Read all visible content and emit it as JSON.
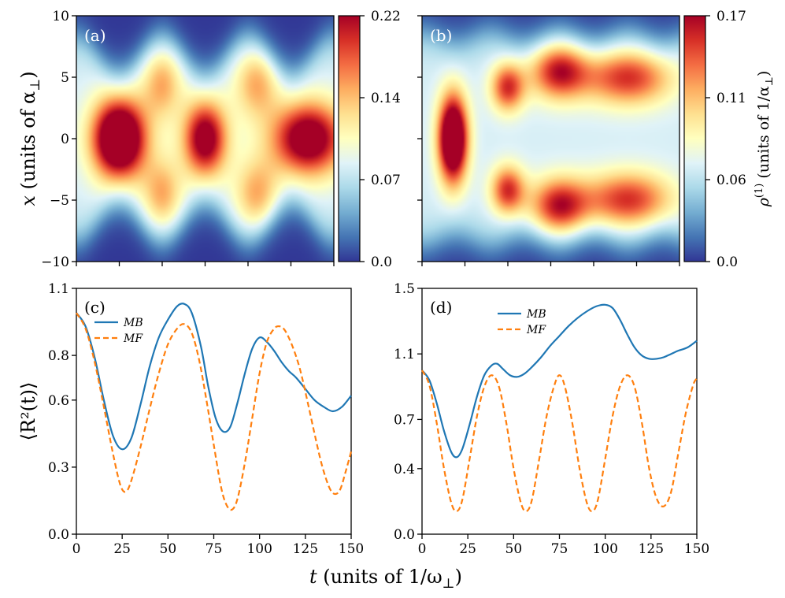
{
  "figure": {
    "shared_xlabel": "t (units of 1/ω⊥)",
    "shared_xlabel_italic": "t",
    "shared_xlabel_rest": " (units of 1/ω",
    "shared_xlabel_sub": "⊥",
    "shared_xlabel_close": ")"
  },
  "chart_data": [
    {
      "type": "heatmap",
      "panel": "(a)",
      "ylabel": "x (units of α⊥)",
      "ylabel_italic": "x",
      "ylabel_rest": " (units of α",
      "ylabel_sub": "⊥",
      "ylabel_close": ")",
      "xlim": [
        0,
        150
      ],
      "ylim": [
        -10,
        10
      ],
      "yticks": [
        10,
        5,
        0,
        -5,
        -10
      ],
      "ytick_labels": [
        "10",
        "5",
        "0",
        "−5",
        "−10"
      ],
      "colorbar": {
        "ticks": [
          "0.22",
          "0.14",
          "0.07",
          "0.0"
        ],
        "max": 0.22,
        "label": ""
      },
      "blobs": [
        {
          "t": 25,
          "x": 0,
          "amp": 0.22,
          "st": 11,
          "sx": 2.3
        },
        {
          "t": 75,
          "x": 0,
          "amp": 0.16,
          "st": 9,
          "sx": 2.2
        },
        {
          "t": 135,
          "x": 0,
          "amp": 0.17,
          "st": 15,
          "sx": 2.1
        },
        {
          "t": 50,
          "x": 4.5,
          "amp": 0.07,
          "st": 8,
          "sx": 2.0
        },
        {
          "t": 50,
          "x": -4.5,
          "amp": 0.07,
          "st": 8,
          "sx": 2.0
        },
        {
          "t": 105,
          "x": 4.5,
          "amp": 0.07,
          "st": 9,
          "sx": 2.0
        },
        {
          "t": 105,
          "x": -4.5,
          "amp": 0.07,
          "st": 9,
          "sx": 2.0
        }
      ],
      "background": 0.085,
      "halfwidth_mean": 6.8,
      "halfwidth_amp": 1.4,
      "halfwidth_period": 50
    },
    {
      "type": "heatmap",
      "panel": "(b)",
      "ylabel": "",
      "xlim": [
        0,
        150
      ],
      "ylim": [
        -10,
        10
      ],
      "colorbar": {
        "ticks": [
          "0.17",
          "0.11",
          "0.06",
          "0.0"
        ],
        "max": 0.17,
        "label": "ρ(1) (units of 1/α⊥)"
      },
      "colorbar_label_main": "ρ",
      "colorbar_label_sup": "(1)",
      "colorbar_label_rest": " (units of 1/α",
      "colorbar_label_sub": "⊥",
      "colorbar_label_close": ")",
      "blobs": [
        {
          "t": 18,
          "x": 0,
          "amp": 0.17,
          "st": 6,
          "sx": 2.5
        },
        {
          "t": 50,
          "x": 4.2,
          "amp": 0.09,
          "st": 7,
          "sx": 1.4
        },
        {
          "t": 50,
          "x": -4.2,
          "amp": 0.09,
          "st": 7,
          "sx": 1.4
        },
        {
          "t": 80,
          "x": 5.5,
          "amp": 0.1,
          "st": 12,
          "sx": 1.6
        },
        {
          "t": 80,
          "x": -5.5,
          "amp": 0.1,
          "st": 12,
          "sx": 1.6
        },
        {
          "t": 120,
          "x": 5,
          "amp": 0.09,
          "st": 18,
          "sx": 1.6
        },
        {
          "t": 120,
          "x": -5,
          "amp": 0.09,
          "st": 18,
          "sx": 1.6
        }
      ],
      "background": 0.065,
      "halfwidth_mean": 8.2,
      "halfwidth_amp": 0.4,
      "halfwidth_period": 40
    },
    {
      "type": "line",
      "panel": "(c)",
      "ylabel": "⟨R²(t)⟩",
      "xlim": [
        0,
        150
      ],
      "ylim": [
        0,
        1.1
      ],
      "xticks": [
        0,
        25,
        50,
        75,
        100,
        125,
        150
      ],
      "yticks": [
        0.0,
        0.3,
        0.6,
        0.8,
        1.1
      ],
      "ytick_labels": [
        "0.0",
        "0.3",
        "0.6",
        "0.8",
        "1.1"
      ],
      "legend": [
        "MB",
        "MF"
      ],
      "series": [
        {
          "name": "MB",
          "color": "#1f77b4",
          "dash": "solid",
          "x": [
            0,
            5,
            10,
            15,
            20,
            25,
            30,
            35,
            40,
            45,
            50,
            55,
            59,
            63,
            68,
            72,
            76,
            80,
            84,
            88,
            92,
            96,
            100,
            104,
            108,
            112,
            116,
            120,
            125,
            130,
            135,
            140,
            145,
            150
          ],
          "y": [
            0.99,
            0.93,
            0.79,
            0.6,
            0.44,
            0.38,
            0.43,
            0.58,
            0.75,
            0.88,
            0.96,
            1.02,
            1.03,
            0.99,
            0.84,
            0.66,
            0.52,
            0.46,
            0.48,
            0.59,
            0.72,
            0.83,
            0.88,
            0.86,
            0.82,
            0.77,
            0.73,
            0.7,
            0.65,
            0.6,
            0.57,
            0.55,
            0.57,
            0.62
          ]
        },
        {
          "name": "MF",
          "color": "#ff7f0e",
          "dash": "dashed",
          "x": [
            0,
            5,
            10,
            15,
            20,
            24,
            27,
            30,
            35,
            40,
            45,
            50,
            55,
            59,
            63,
            67,
            71,
            75,
            79,
            82,
            85,
            88,
            92,
            96,
            100,
            104,
            108,
            111,
            114,
            118,
            122,
            126,
            130,
            134,
            138,
            141,
            144,
            147,
            150
          ],
          "y": [
            0.99,
            0.92,
            0.77,
            0.57,
            0.36,
            0.22,
            0.19,
            0.24,
            0.39,
            0.56,
            0.72,
            0.85,
            0.92,
            0.94,
            0.9,
            0.78,
            0.6,
            0.4,
            0.21,
            0.13,
            0.11,
            0.16,
            0.32,
            0.52,
            0.72,
            0.86,
            0.92,
            0.93,
            0.91,
            0.84,
            0.74,
            0.6,
            0.45,
            0.31,
            0.21,
            0.18,
            0.2,
            0.28,
            0.37
          ]
        }
      ]
    },
    {
      "type": "line",
      "panel": "(d)",
      "ylabel": "",
      "xlim": [
        0,
        150
      ],
      "ylim": [
        0,
        1.5
      ],
      "xticks": [
        0,
        25,
        50,
        75,
        100,
        125,
        150
      ],
      "yticks": [
        0.0,
        0.4,
        0.7,
        1.1,
        1.5
      ],
      "ytick_labels": [
        "0.0",
        "0.4",
        "0.7",
        "1.1",
        "1.5"
      ],
      "legend": [
        "MB",
        "MF"
      ],
      "series": [
        {
          "name": "MB",
          "color": "#1f77b4",
          "dash": "solid",
          "x": [
            0,
            4,
            8,
            12,
            16,
            19,
            22,
            26,
            30,
            34,
            38,
            41,
            44,
            48,
            52,
            56,
            60,
            65,
            70,
            75,
            80,
            85,
            90,
            95,
            100,
            104,
            108,
            112,
            116,
            120,
            124,
            128,
            132,
            136,
            140,
            145,
            150
          ],
          "y": [
            1.0,
            0.94,
            0.8,
            0.63,
            0.5,
            0.47,
            0.52,
            0.67,
            0.84,
            0.97,
            1.03,
            1.04,
            1.01,
            0.97,
            0.96,
            0.98,
            1.02,
            1.08,
            1.15,
            1.21,
            1.27,
            1.32,
            1.36,
            1.39,
            1.4,
            1.38,
            1.31,
            1.22,
            1.14,
            1.09,
            1.07,
            1.07,
            1.08,
            1.1,
            1.12,
            1.14,
            1.18
          ]
        },
        {
          "name": "MF",
          "color": "#ff7f0e",
          "dash": "dashed",
          "x": [
            0,
            4,
            8,
            12,
            16,
            19,
            22,
            26,
            30,
            34,
            38,
            42,
            46,
            50,
            54,
            57,
            60,
            64,
            68,
            72,
            75,
            78,
            82,
            86,
            90,
            93,
            96,
            100,
            104,
            108,
            112,
            116,
            120,
            124,
            128,
            132,
            136,
            140,
            144,
            148,
            150
          ],
          "y": [
            1.0,
            0.91,
            0.68,
            0.4,
            0.19,
            0.14,
            0.21,
            0.46,
            0.72,
            0.9,
            0.97,
            0.9,
            0.68,
            0.4,
            0.19,
            0.14,
            0.21,
            0.46,
            0.72,
            0.9,
            0.97,
            0.9,
            0.68,
            0.4,
            0.19,
            0.14,
            0.21,
            0.46,
            0.72,
            0.9,
            0.97,
            0.9,
            0.68,
            0.4,
            0.22,
            0.17,
            0.26,
            0.5,
            0.74,
            0.91,
            0.95
          ]
        }
      ]
    }
  ]
}
